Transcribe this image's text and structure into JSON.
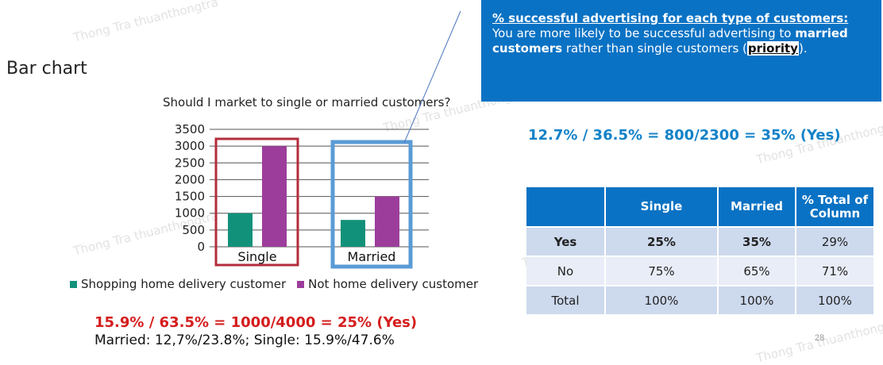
{
  "slide": {
    "heading": "Bar chart",
    "page_number": "28",
    "watermark": "Thong Tra thuanthongtra"
  },
  "chart_data": {
    "type": "bar",
    "title": "Should I market to single or married customers?",
    "categories": [
      "Single",
      "Married"
    ],
    "series": [
      {
        "name": "Shopping home delivery customer",
        "values": [
          1000,
          800
        ],
        "color": "#12917a"
      },
      {
        "name": "Not home delivery customer",
        "values": [
          3000,
          1500
        ],
        "color": "#9c3d9b"
      }
    ],
    "yticks": [
      "0",
      "500",
      "1000",
      "1500",
      "2000",
      "2500",
      "3000",
      "3500"
    ],
    "ylim": [
      0,
      3500
    ],
    "grid": true,
    "legend": "bottom",
    "highlight_colors": {
      "single": "#b32c3a",
      "married": "#5b9bd5"
    }
  },
  "formulas": {
    "red": "15.9% / 63.5% = 1000/4000 = 25% (Yes)",
    "married_single": "Married: 12,7%/23.8%; Single: 15.9%/47.6%",
    "blue": "12.7% / 36.5% = 800/2300 = 35% (Yes)"
  },
  "callout": {
    "heading": "% successful advertising for each type of customers:",
    "text1": " You are more likely to be successful advertising to ",
    "bold1": "married customers",
    "text2": " rather than single customers (",
    "priority": "priority",
    "text3": ")."
  },
  "table": {
    "headers": [
      "",
      "Single",
      "Married",
      "% Total of Column"
    ],
    "rows": [
      [
        "Yes",
        "25%",
        "35%",
        "29%"
      ],
      [
        "No",
        "75%",
        "65%",
        "71%"
      ],
      [
        "Total",
        "100%",
        "100%",
        "100%"
      ]
    ]
  }
}
